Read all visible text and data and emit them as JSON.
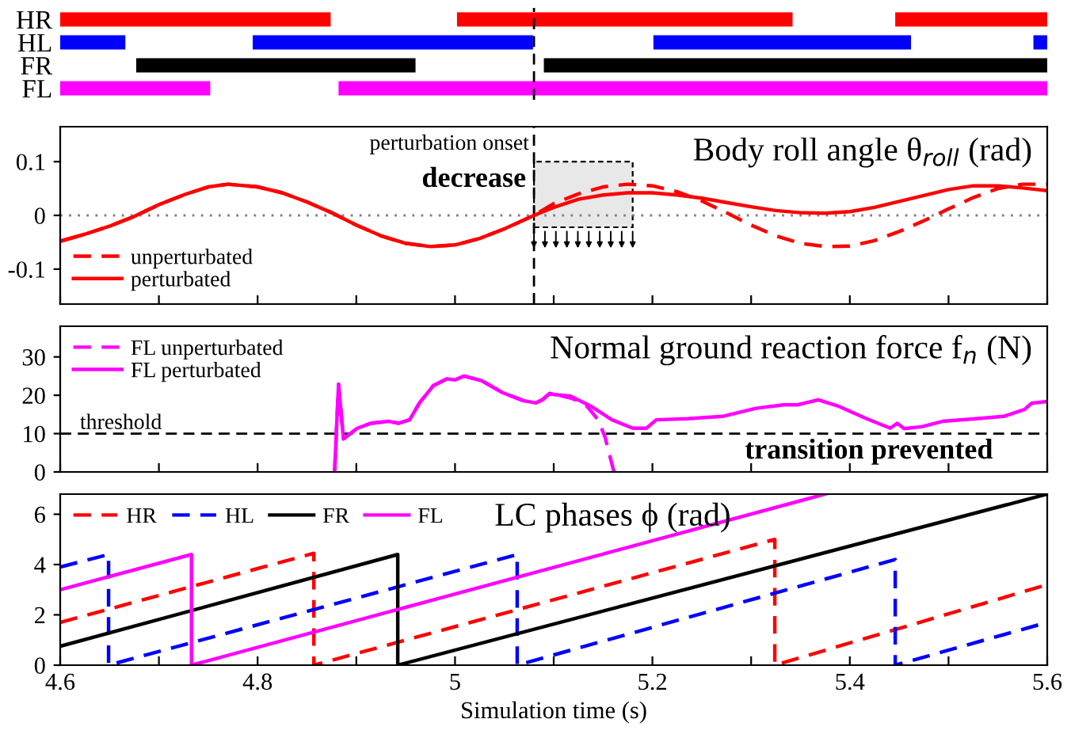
{
  "chart_data": [
    {
      "type": "bar",
      "orientation": "horizontal",
      "categories": [
        "HR",
        "HL",
        "FR",
        "FL"
      ],
      "xlim": [
        4.6,
        5.6
      ],
      "tick_labels": "y",
      "series": [
        {
          "colors": [
            "#ff0000",
            "#0000ff",
            "#000000",
            "#ff00ff"
          ],
          "base": [
            4.6,
            4.6,
            4.677,
            4.6
          ],
          "values": [
            0.274,
            0.066,
            0.283,
            0.152
          ]
        },
        {
          "colors": [
            "#ff0000",
            "#0000ff",
            "#000000",
            "#ff00ff"
          ],
          "base": [
            5.002,
            4.795,
            5.09,
            4.882
          ],
          "values": [
            0.34,
            0.284,
            0.51,
            0.718
          ]
        },
        {
          "colors": [
            "#ff0000",
            "#0000ff",
            "#000000",
            "#ff00ff"
          ],
          "base": [
            5.446,
            5.201,
            null,
            null
          ],
          "values": [
            0.154,
            0.261,
            null,
            null
          ]
        },
        {
          "colors": [
            "#ff0000",
            "#0000ff",
            "#000000",
            "#ff00ff"
          ],
          "base": [
            null,
            5.586,
            null,
            null
          ],
          "values": [
            null,
            0.014,
            null,
            null
          ]
        }
      ],
      "ref_lines": [
        {
          "axis": "x",
          "value": 5.08,
          "color": "#000000",
          "line_style": "dashed"
        }
      ]
    },
    {
      "type": "line",
      "title": "Body roll angle θ$_{roll}$ (rad)",
      "xlim": [
        4.6,
        5.6
      ],
      "ylim": [
        -0.165,
        0.165
      ],
      "yticks": [
        -0.1,
        0,
        0.1
      ],
      "tick_labels": "y",
      "legend": "bottom left",
      "xticks": [
        {
          "value": 4.6,
          "label": null
        },
        {
          "value": 4.7,
          "label": null
        },
        {
          "value": 4.8,
          "label": null
        },
        {
          "value": 4.9,
          "label": null
        },
        {
          "value": 5.0,
          "label": null
        },
        {
          "value": 5.1,
          "label": null
        },
        {
          "value": 5.2,
          "label": null
        },
        {
          "value": 5.3,
          "label": null
        },
        {
          "value": 5.4,
          "label": null
        },
        {
          "value": 5.5,
          "label": null
        },
        {
          "value": 5.6,
          "label": null
        }
      ],
      "series": [
        {
          "name": "unperturbated",
          "color": "#ff0000",
          "line_style": "dashed",
          "x": [
            4.6,
            4.625,
            4.65,
            4.675,
            4.7,
            4.725,
            4.75,
            4.77,
            4.8,
            4.825,
            4.85,
            4.875,
            4.9,
            4.925,
            4.95,
            4.975,
            5.0,
            5.025,
            5.05,
            5.08,
            5.1,
            5.125,
            5.15,
            5.175,
            5.2,
            5.225,
            5.25,
            5.275,
            5.3,
            5.325,
            5.35,
            5.375,
            5.4,
            5.425,
            5.45,
            5.475,
            5.5,
            5.525,
            5.55,
            5.575,
            5.6
          ],
          "values": [
            -0.048,
            -0.035,
            -0.02,
            -0.002,
            0.02,
            0.038,
            0.053,
            0.058,
            0.053,
            0.042,
            0.025,
            0.005,
            -0.018,
            -0.038,
            -0.052,
            -0.058,
            -0.055,
            -0.043,
            -0.025,
            0.0,
            0.022,
            0.04,
            0.053,
            0.058,
            0.055,
            0.044,
            0.027,
            0.005,
            -0.018,
            -0.038,
            -0.052,
            -0.058,
            -0.057,
            -0.047,
            -0.03,
            -0.01,
            0.012,
            0.033,
            0.05,
            0.058,
            0.058
          ]
        },
        {
          "name": "perturbated",
          "color": "#ff0000",
          "line_style": "solid",
          "x": [
            4.6,
            4.625,
            4.65,
            4.675,
            4.7,
            4.725,
            4.75,
            4.77,
            4.8,
            4.825,
            4.85,
            4.875,
            4.9,
            4.925,
            4.95,
            4.975,
            5.0,
            5.025,
            5.05,
            5.08,
            5.1,
            5.125,
            5.15,
            5.175,
            5.2,
            5.225,
            5.25,
            5.275,
            5.3,
            5.325,
            5.35,
            5.375,
            5.4,
            5.425,
            5.45,
            5.475,
            5.5,
            5.525,
            5.55,
            5.575,
            5.6
          ],
          "values": [
            -0.048,
            -0.035,
            -0.02,
            -0.002,
            0.02,
            0.038,
            0.053,
            0.058,
            0.053,
            0.042,
            0.025,
            0.005,
            -0.018,
            -0.038,
            -0.052,
            -0.058,
            -0.055,
            -0.043,
            -0.025,
            0.0,
            0.015,
            0.03,
            0.038,
            0.042,
            0.042,
            0.038,
            0.032,
            0.024,
            0.016,
            0.009,
            0.005,
            0.004,
            0.007,
            0.015,
            0.026,
            0.037,
            0.048,
            0.055,
            0.055,
            0.051,
            0.046
          ]
        }
      ],
      "ref_lines": [
        {
          "axis": "y",
          "value": 0,
          "color": "#808080",
          "line_style": "dotted"
        },
        {
          "axis": "x",
          "value": 5.08,
          "label": "perturbation onset",
          "color": "#000000",
          "line_style": "dashed"
        }
      ],
      "bands": [
        {
          "axis": "x",
          "from": 5.08,
          "to": 5.18,
          "label": "decrease",
          "color": "#e8e8e8"
        }
      ]
    },
    {
      "type": "line",
      "title": "Normal ground reaction force f$_{n}$ (N)",
      "xlim": [
        4.6,
        5.6
      ],
      "ylim": [
        0,
        38
      ],
      "yticks": [
        0,
        10,
        20,
        30
      ],
      "tick_labels": "y",
      "legend": "top left",
      "xticks": [
        {
          "value": 4.6,
          "label": null
        },
        {
          "value": 4.7,
          "label": null
        },
        {
          "value": 4.8,
          "label": null
        },
        {
          "value": 4.9,
          "label": null
        },
        {
          "value": 5.0,
          "label": null
        },
        {
          "value": 5.1,
          "label": null
        },
        {
          "value": 5.2,
          "label": null
        },
        {
          "value": 5.3,
          "label": null
        },
        {
          "value": 5.4,
          "label": null
        },
        {
          "value": 5.5,
          "label": null
        },
        {
          "value": 5.6,
          "label": null
        }
      ],
      "series": [
        {
          "name": "FL unperturbated",
          "color": "#ff00ff",
          "line_style": "dashed",
          "x": [
            4.878,
            4.882,
            4.887,
            4.901,
            4.915,
            4.933,
            4.943,
            4.954,
            4.964,
            4.978,
            4.992,
            5.0,
            5.009,
            5.027,
            5.048,
            5.069,
            5.082,
            5.089,
            5.096,
            5.117,
            5.131,
            5.145,
            5.152,
            5.161
          ],
          "values": [
            0,
            22.9,
            8.6,
            11.4,
            12.7,
            13.2,
            12.7,
            13.6,
            18,
            22.5,
            24.3,
            24,
            25,
            23.8,
            20.7,
            18.6,
            18,
            18.9,
            20.5,
            19.3,
            18,
            13.6,
            9.1,
            0
          ]
        },
        {
          "name": "FL perturbated",
          "color": "#ff00ff",
          "line_style": "solid",
          "x": [
            4.878,
            4.882,
            4.887,
            4.901,
            4.915,
            4.933,
            4.943,
            4.954,
            4.964,
            4.978,
            4.992,
            5.0,
            5.009,
            5.027,
            5.048,
            5.069,
            5.082,
            5.089,
            5.096,
            5.1,
            5.117,
            5.138,
            5.159,
            5.18,
            5.194,
            5.204,
            5.236,
            5.271,
            5.305,
            5.333,
            5.347,
            5.368,
            5.389,
            5.417,
            5.441,
            5.448,
            5.455,
            5.473,
            5.494,
            5.528,
            5.556,
            5.577,
            5.584,
            5.6
          ],
          "values": [
            0,
            22.9,
            8.6,
            11.4,
            12.7,
            13.2,
            12.7,
            13.6,
            18,
            22.5,
            24.3,
            24,
            25,
            23.8,
            20.7,
            18.6,
            18,
            18.9,
            20.5,
            20.2,
            19.8,
            17.1,
            13.6,
            11.4,
            11.4,
            13.6,
            13.9,
            14.5,
            16.6,
            17.5,
            17.5,
            18.8,
            17.1,
            13.9,
            11.4,
            12.7,
            11.3,
            11.8,
            13.2,
            13.9,
            14.5,
            16.3,
            17.9,
            18.4
          ]
        }
      ],
      "ref_lines": [
        {
          "axis": "y",
          "value": 10,
          "label": "threshold",
          "color": "#000000",
          "line_style": "dashed"
        }
      ],
      "annotations": [
        "transition prevented"
      ]
    },
    {
      "type": "line",
      "title": "LC phases ϕ (rad)",
      "xlabel": "Simulation time (s)",
      "xlim": [
        4.6,
        5.6
      ],
      "ylim": [
        0,
        6.8
      ],
      "yticks": [
        0,
        2,
        4,
        6
      ],
      "legend": "top left",
      "xticks": [
        4.6,
        {
          "value": 4.7,
          "label": null
        },
        4.8,
        {
          "value": 4.9,
          "label": null
        },
        5,
        {
          "value": 5.1,
          "label": null
        },
        5.2,
        {
          "value": 5.3,
          "label": null
        },
        5.4,
        {
          "value": 5.5,
          "label": null
        },
        5.6
      ],
      "series": [
        {
          "name": "HR",
          "color": "#ff0000",
          "line_style": "dashed",
          "x": [
            4.6,
            4.857,
            4.857,
            5.324,
            5.324,
            5.6
          ],
          "values": [
            1.7,
            4.45,
            0,
            5.0,
            0,
            3.2
          ]
        },
        {
          "name": "HL",
          "color": "#0000ff",
          "line_style": "dashed",
          "x": [
            4.6,
            4.649,
            4.649,
            5.063,
            5.063,
            5.446,
            5.446,
            5.6
          ],
          "values": [
            3.9,
            4.4,
            0,
            4.4,
            0,
            4.2,
            0,
            1.7
          ]
        },
        {
          "name": "FR",
          "color": "#000000",
          "line_style": "solid",
          "x": [
            4.6,
            4.942,
            4.942,
            5.6
          ],
          "values": [
            0.75,
            4.4,
            0,
            6.8
          ]
        },
        {
          "name": "FL",
          "color": "#ff00ff",
          "line_style": "solid",
          "x": [
            4.6,
            4.733,
            4.733,
            5.375
          ],
          "values": [
            3.0,
            4.4,
            0,
            6.8
          ]
        }
      ]
    }
  ]
}
